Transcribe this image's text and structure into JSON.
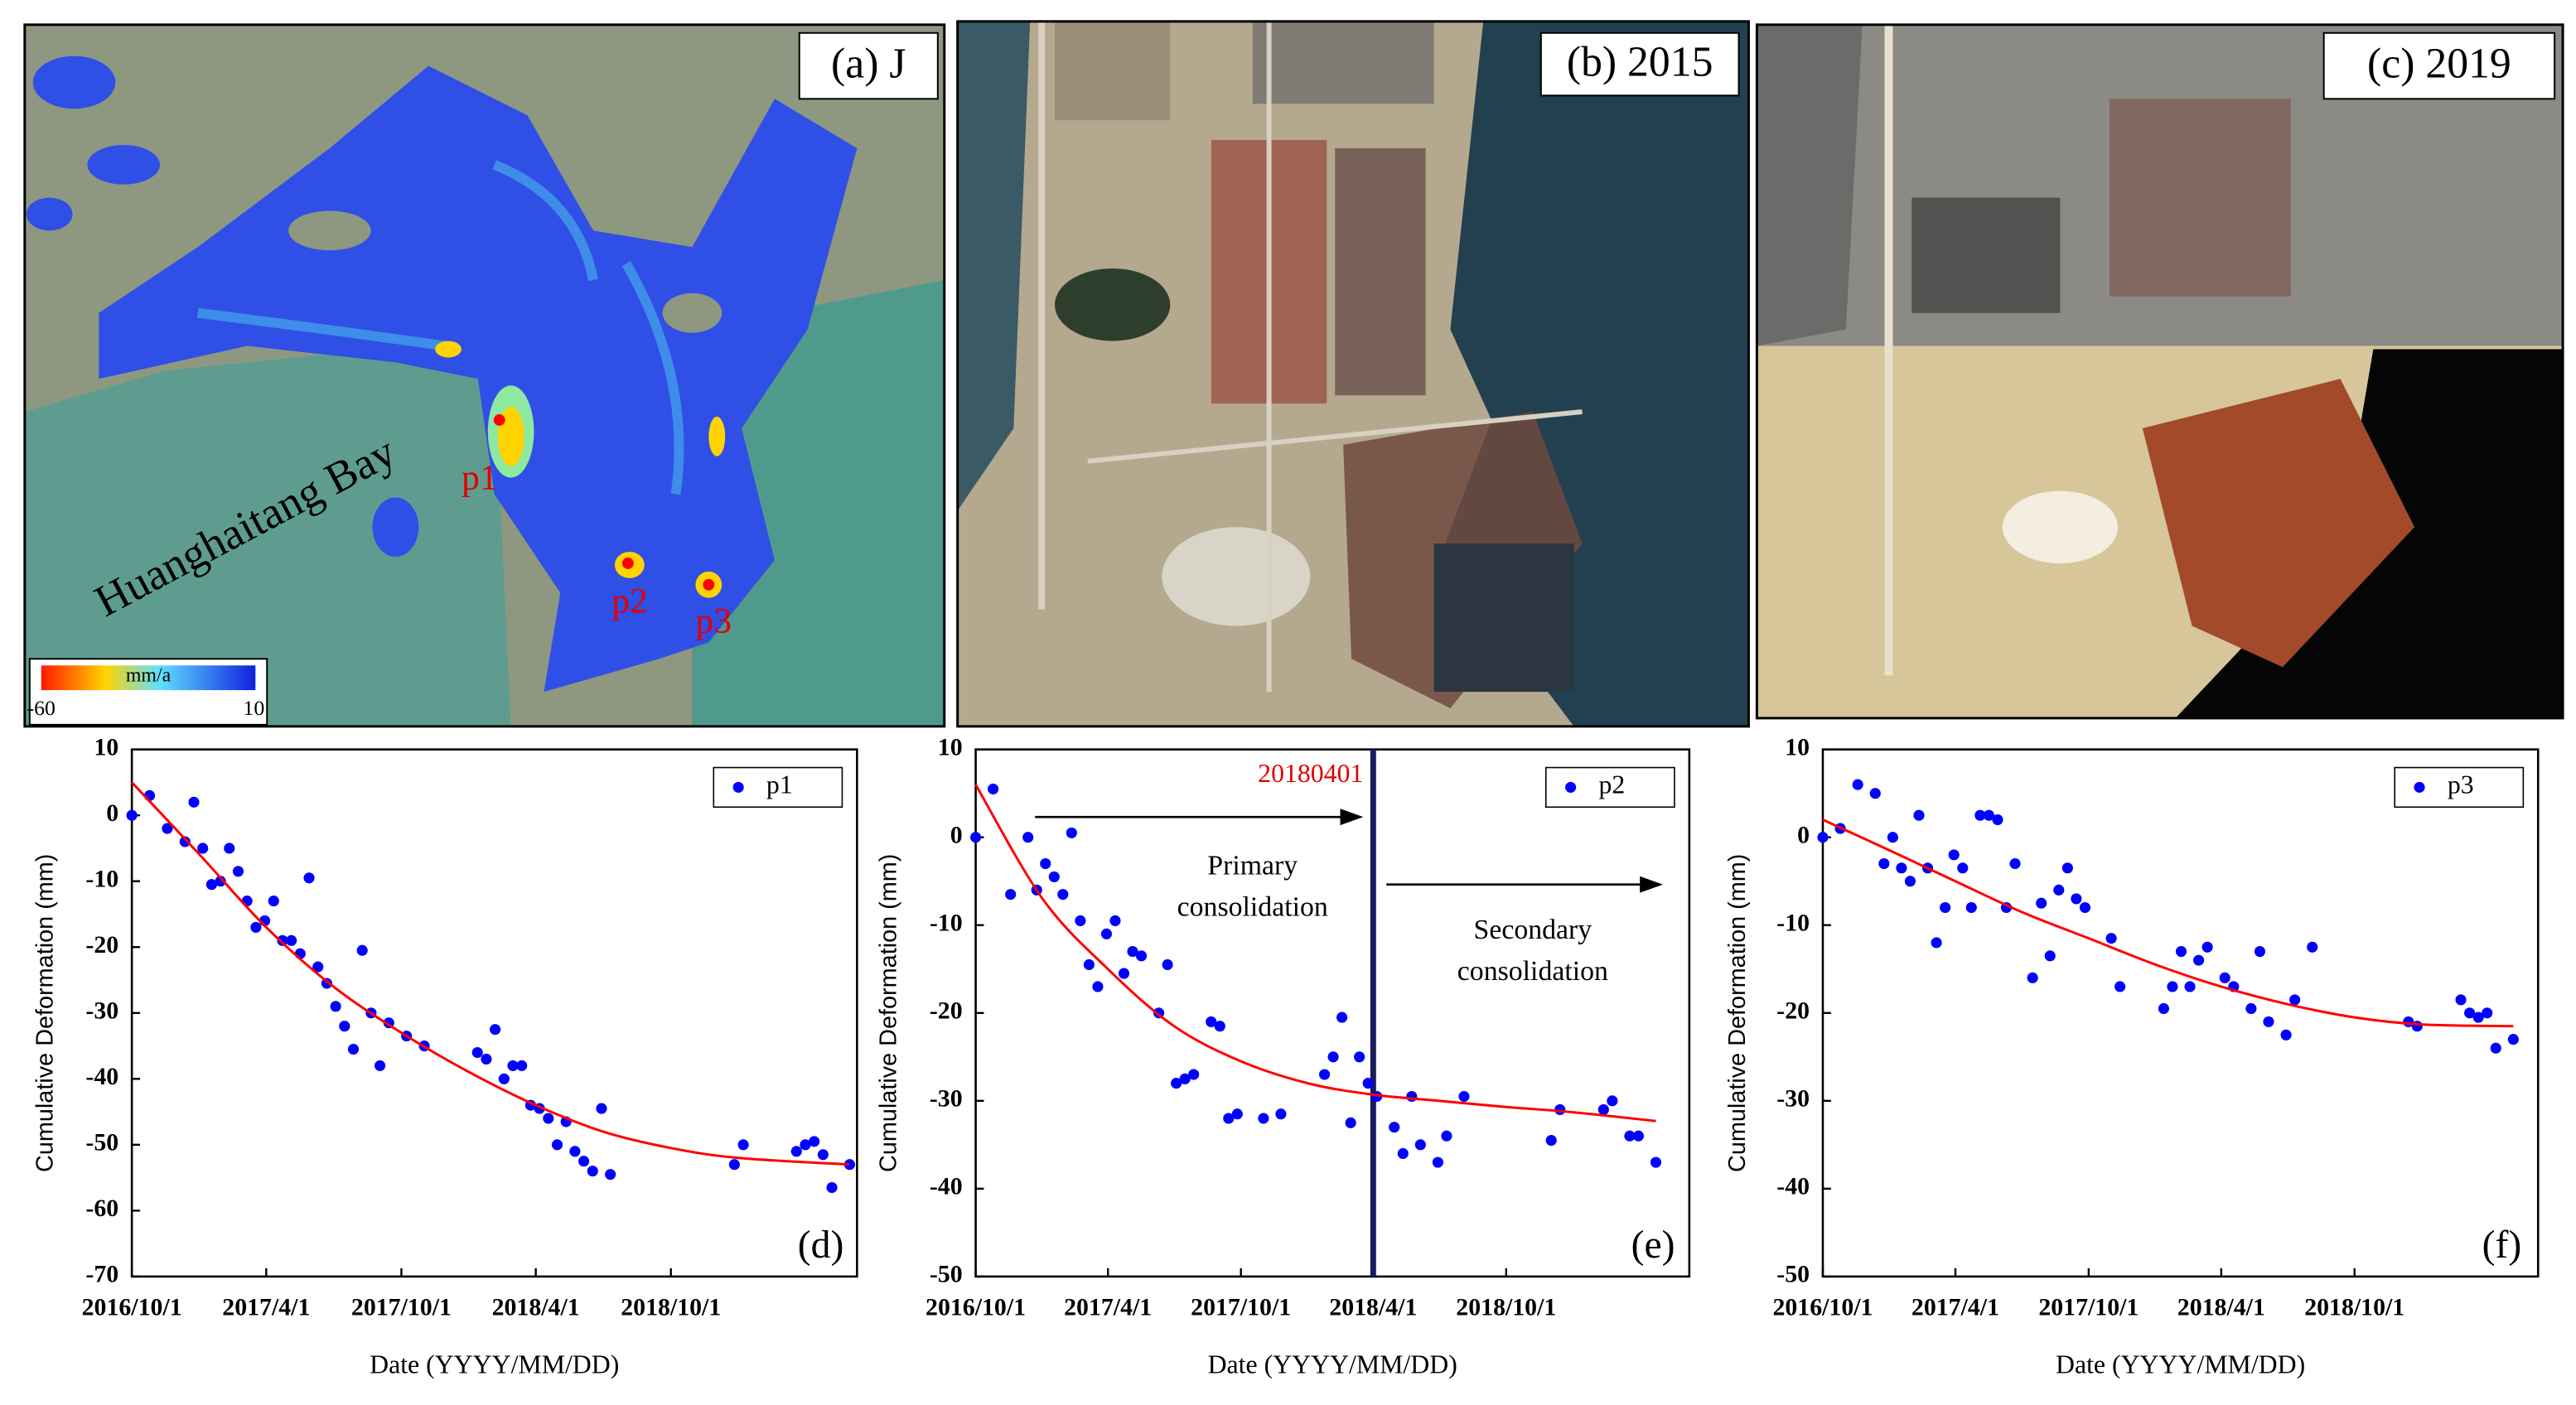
{
  "images": [
    {
      "label": "(a) J",
      "place_name": "Huanghaitang Bay",
      "points": [
        "p1",
        "p2",
        "p3"
      ],
      "colorbar": {
        "unit": "mm/a",
        "min": -60,
        "max": 10
      }
    },
    {
      "label": "(b) 2015"
    },
    {
      "label": "(c) 2019"
    }
  ],
  "chart_data": [
    {
      "type": "scatter",
      "panel_label": "(d)",
      "x_label": "Date (YYYY/MM/DD)",
      "y_label": "Cumulative Deformation (mm)",
      "xlim": [
        "2016/10/1",
        "2019/6/10"
      ],
      "xticks": [
        "2016/10/1",
        "2017/4/1",
        "2017/10/1",
        "2018/4/1",
        "2018/10/1"
      ],
      "ylim": [
        -70,
        10
      ],
      "yticks": [
        -70,
        -60,
        -50,
        -40,
        -30,
        -20,
        -10,
        0,
        10
      ],
      "legend": "upper right",
      "series": [
        {
          "name": "p1",
          "color": "#0000ff",
          "x": [
            "2016/10/1",
            "2016/10/25",
            "2016/11/18",
            "2016/12/12",
            "2016/12/24",
            "2017/1/5",
            "2017/1/17",
            "2017/1/29",
            "2017/2/10",
            "2017/2/22",
            "2017/3/6",
            "2017/3/18",
            "2017/3/30",
            "2017/4/11",
            "2017/4/23",
            "2017/5/5",
            "2017/5/17",
            "2017/5/29",
            "2017/6/10",
            "2017/6/22",
            "2017/7/4",
            "2017/7/16",
            "2017/7/28",
            "2017/8/9",
            "2017/8/21",
            "2017/9/2",
            "2017/9/14",
            "2017/10/8",
            "2017/11/1",
            "2018/1/12",
            "2018/1/24",
            "2018/2/5",
            "2018/2/17",
            "2018/3/1",
            "2018/3/13",
            "2018/3/25",
            "2018/4/6",
            "2018/4/18",
            "2018/4/30",
            "2018/5/12",
            "2018/5/24",
            "2018/6/5",
            "2018/6/17",
            "2018/6/29",
            "2018/7/11",
            "2018/12/26",
            "2019/1/7",
            "2019/3/20",
            "2019/4/1",
            "2019/4/13",
            "2019/4/25",
            "2019/5/7",
            "2019/5/31"
          ],
          "values": [
            0,
            3,
            -2,
            -4,
            2,
            -5,
            -10.5,
            -10,
            -5,
            -8.5,
            -13,
            -17,
            -16,
            -13,
            -19,
            -19,
            -21,
            -9.5,
            -23,
            -25.5,
            -29,
            -32,
            -35.5,
            -20.5,
            -30,
            -38,
            -31.5,
            -33.5,
            -35,
            -36,
            -37,
            -32.5,
            -40,
            -38,
            -38,
            -44,
            -44.5,
            -46,
            -50,
            -46.5,
            -51,
            -52.5,
            -54,
            -44.5,
            -54.5,
            -53,
            -50,
            -51,
            -50,
            -49.5,
            -51.5,
            -56.5,
            -53
          ]
        },
        {
          "type": "line",
          "color": "#ff0000",
          "x": [
            "2016/10/1",
            "2017/1/1",
            "2017/4/1",
            "2017/7/1",
            "2017/10/1",
            "2018/1/1",
            "2018/4/1",
            "2018/7/1",
            "2018/10/1",
            "2019/1/1",
            "2019/5/31"
          ],
          "values": [
            5,
            -6,
            -17,
            -26,
            -33,
            -39,
            -44,
            -48,
            -50.5,
            -52,
            -53
          ]
        }
      ]
    },
    {
      "type": "scatter",
      "panel_label": "(e)",
      "x_label": "Date (YYYY/MM/DD)",
      "y_label": "Cumulative Deformation (mm)",
      "xlim": [
        "2016/10/1",
        "2019/6/10"
      ],
      "xticks": [
        "2016/10/1",
        "2017/4/1",
        "2017/10/1",
        "2018/4/1",
        "2018/10/1"
      ],
      "ylim": [
        -50,
        10
      ],
      "yticks": [
        -50,
        -40,
        -30,
        -20,
        -10,
        0,
        10
      ],
      "legend": "upper right",
      "vline": {
        "x": "2018/4/1",
        "label": "20180401",
        "color": "#1a1a5e"
      },
      "annotations": [
        {
          "lines": [
            "Primary",
            "consolidation"
          ]
        },
        {
          "lines": [
            "Secondary",
            "consolidation"
          ]
        }
      ],
      "series": [
        {
          "name": "p2",
          "color": "#0000ff",
          "x": [
            "2016/10/1",
            "2016/10/25",
            "2016/11/18",
            "2016/12/12",
            "2016/12/24",
            "2017/1/5",
            "2017/1/17",
            "2017/1/29",
            "2017/2/10",
            "2017/2/22",
            "2017/3/6",
            "2017/3/18",
            "2017/3/30",
            "2017/4/11",
            "2017/4/23",
            "2017/5/5",
            "2017/5/17",
            "2017/6/10",
            "2017/6/22",
            "2017/7/4",
            "2017/7/16",
            "2017/7/28",
            "2017/8/21",
            "2017/9/2",
            "2017/9/14",
            "2017/9/26",
            "2017/11/1",
            "2017/11/25",
            "2018/1/24",
            "2018/2/5",
            "2018/2/17",
            "2018/3/1",
            "2018/3/13",
            "2018/3/25",
            "2018/4/6",
            "2018/4/30",
            "2018/5/12",
            "2018/5/24",
            "2018/6/5",
            "2018/6/29",
            "2018/7/11",
            "2018/8/4",
            "2018/12/2",
            "2018/12/14",
            "2019/2/12",
            "2019/2/24",
            "2019/3/20",
            "2019/4/1",
            "2019/4/25"
          ],
          "values": [
            0,
            5.5,
            -6.5,
            0,
            -6,
            -3,
            -4.5,
            -6.5,
            0.5,
            -9.5,
            -14.5,
            -17,
            -11,
            -9.5,
            -15.5,
            -13,
            -13.5,
            -20,
            -14.5,
            -28,
            -27.5,
            -27,
            -21,
            -21.5,
            -32,
            -31.5,
            -32,
            -31.5,
            -27,
            -25,
            -20.5,
            -32.5,
            -25,
            -28,
            -29.5,
            -33,
            -36,
            -29.5,
            -35,
            -37,
            -34,
            -29.5,
            -34.5,
            -31,
            -31,
            -30,
            -34,
            -34,
            -37
          ]
        },
        {
          "type": "line",
          "color": "#ff0000",
          "x": [
            "2016/10/1",
            "2017/1/1",
            "2017/4/1",
            "2017/7/1",
            "2017/10/1",
            "2018/1/1",
            "2018/4/1",
            "2018/7/1",
            "2018/10/1",
            "2019/1/1",
            "2019/4/25"
          ],
          "values": [
            6,
            -7,
            -15,
            -21.5,
            -25.5,
            -28,
            -29.3,
            -30,
            -30.7,
            -31.3,
            -32.3
          ]
        }
      ]
    },
    {
      "type": "scatter",
      "panel_label": "(f)",
      "x_label": "Date (YYYY/MM/DD)",
      "y_label": "Cumulative Deformation (mm)",
      "xlim": [
        "2016/10/1",
        "2019/6/10"
      ],
      "xticks": [
        "2016/10/1",
        "2017/4/1",
        "2017/10/1",
        "2018/4/1",
        "2018/10/1"
      ],
      "ylim": [
        -50,
        10
      ],
      "yticks": [
        -50,
        -40,
        -30,
        -20,
        -10,
        0,
        10
      ],
      "legend": "upper right",
      "series": [
        {
          "name": "p3",
          "color": "#0000ff",
          "x": [
            "2016/10/1",
            "2016/10/25",
            "2016/11/18",
            "2016/12/12",
            "2016/12/24",
            "2017/1/5",
            "2017/1/17",
            "2017/1/29",
            "2017/2/10",
            "2017/2/22",
            "2017/3/6",
            "2017/3/18",
            "2017/3/30",
            "2017/4/11",
            "2017/4/23",
            "2017/5/5",
            "2017/5/17",
            "2017/5/29",
            "2017/6/10",
            "2017/6/22",
            "2017/7/16",
            "2017/7/28",
            "2017/8/9",
            "2017/8/21",
            "2017/9/2",
            "2017/9/14",
            "2017/9/26",
            "2017/11/1",
            "2017/11/13",
            "2018/1/12",
            "2018/1/24",
            "2018/2/5",
            "2018/2/17",
            "2018/3/1",
            "2018/3/13",
            "2018/4/6",
            "2018/4/18",
            "2018/5/12",
            "2018/5/24",
            "2018/6/5",
            "2018/6/29",
            "2018/7/11",
            "2018/8/4",
            "2018/12/14",
            "2018/12/26",
            "2019/2/24",
            "2019/3/8",
            "2019/3/20",
            "2019/4/1",
            "2019/4/13",
            "2019/5/7"
          ],
          "values": [
            0,
            1,
            6,
            5,
            -3,
            0,
            -3.5,
            -5,
            2.5,
            -3.5,
            -12,
            -8,
            -2,
            -3.5,
            -8,
            2.5,
            2.5,
            2,
            -8,
            -3,
            -16,
            -7.5,
            -13.5,
            -6,
            -3.5,
            -7,
            -8,
            -11.5,
            -17,
            -19.5,
            -17,
            -13,
            -17,
            -14,
            -12.5,
            -16,
            -17,
            -19.5,
            -13,
            -21,
            -22.5,
            -18.5,
            -12.5,
            -21,
            -21.5,
            -18.5,
            -20,
            -20.5,
            -20,
            -24,
            -23
          ]
        },
        {
          "type": "line",
          "color": "#ff0000",
          "x": [
            "2016/10/1",
            "2017/1/1",
            "2017/4/1",
            "2017/7/1",
            "2017/10/1",
            "2018/1/1",
            "2018/4/1",
            "2018/7/1",
            "2018/10/1",
            "2019/1/1",
            "2019/5/7"
          ],
          "values": [
            2,
            -1.5,
            -5,
            -8.5,
            -11.5,
            -14.5,
            -17,
            -19,
            -20.5,
            -21.3,
            -21.5
          ]
        }
      ]
    }
  ]
}
